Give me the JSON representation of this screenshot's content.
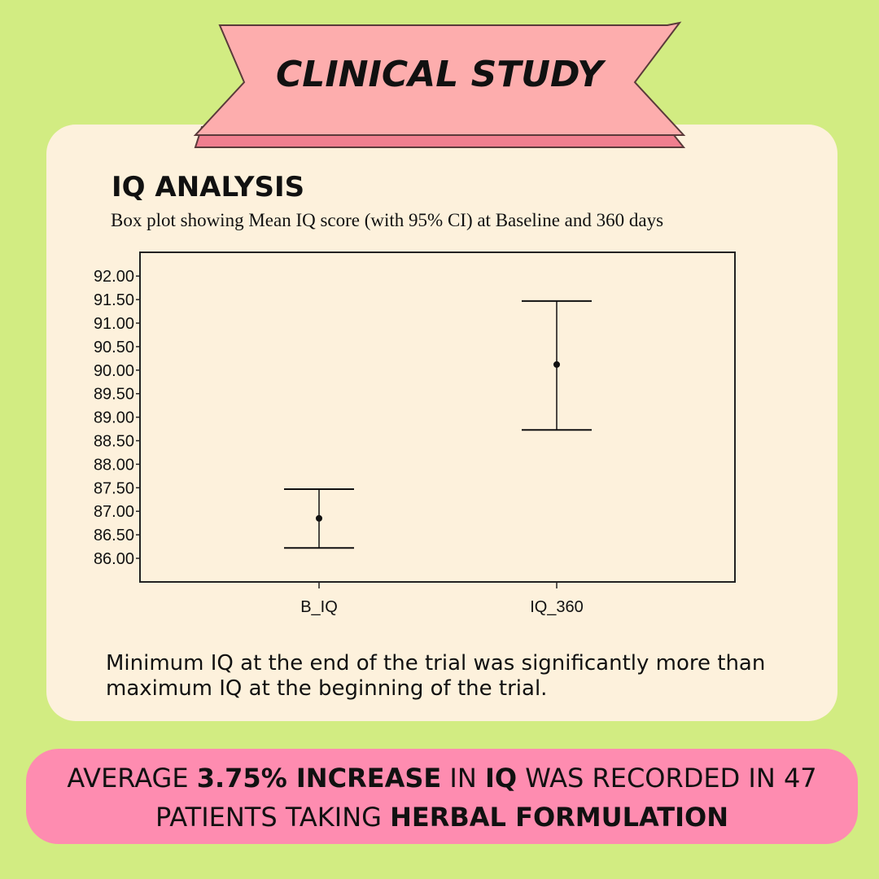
{
  "banner": {
    "title": "CLINICAL STUDY"
  },
  "section_title": "IQ ANALYSIS",
  "chart_data": {
    "type": "errorbar",
    "title": "Box plot showing Mean IQ score (with 95% CI) at Baseline and 360 days",
    "xlabel": "",
    "ylabel": "",
    "categories": [
      "B_IQ",
      "IQ_360"
    ],
    "mean": [
      86.85,
      90.12
    ],
    "ci_lower": [
      86.22,
      88.73
    ],
    "ci_upper": [
      87.47,
      91.47
    ],
    "ylim": [
      85.5,
      92.5
    ],
    "yticks": [
      "92.00",
      "91.50",
      "91.00",
      "90.50",
      "90.00",
      "89.50",
      "89.00",
      "88.50",
      "88.00",
      "87.50",
      "87.00",
      "86.50",
      "86.00"
    ],
    "grid": false
  },
  "note": "Minimum IQ at the end of the trial was significantly more than maximum IQ at the beginning of the trial.",
  "footer": {
    "p1": "AVERAGE ",
    "b1": "3.75% INCREASE",
    "p2": " IN ",
    "b2": "IQ",
    "p3": " WAS RECORDED IN 47 PATIENTS TAKING ",
    "b3": "HERBAL FORMULATION"
  },
  "colors": {
    "background": "#d2ec82",
    "card": "#fdf1dc",
    "banner": "#fdadad",
    "footer": "#fe8cb0"
  }
}
